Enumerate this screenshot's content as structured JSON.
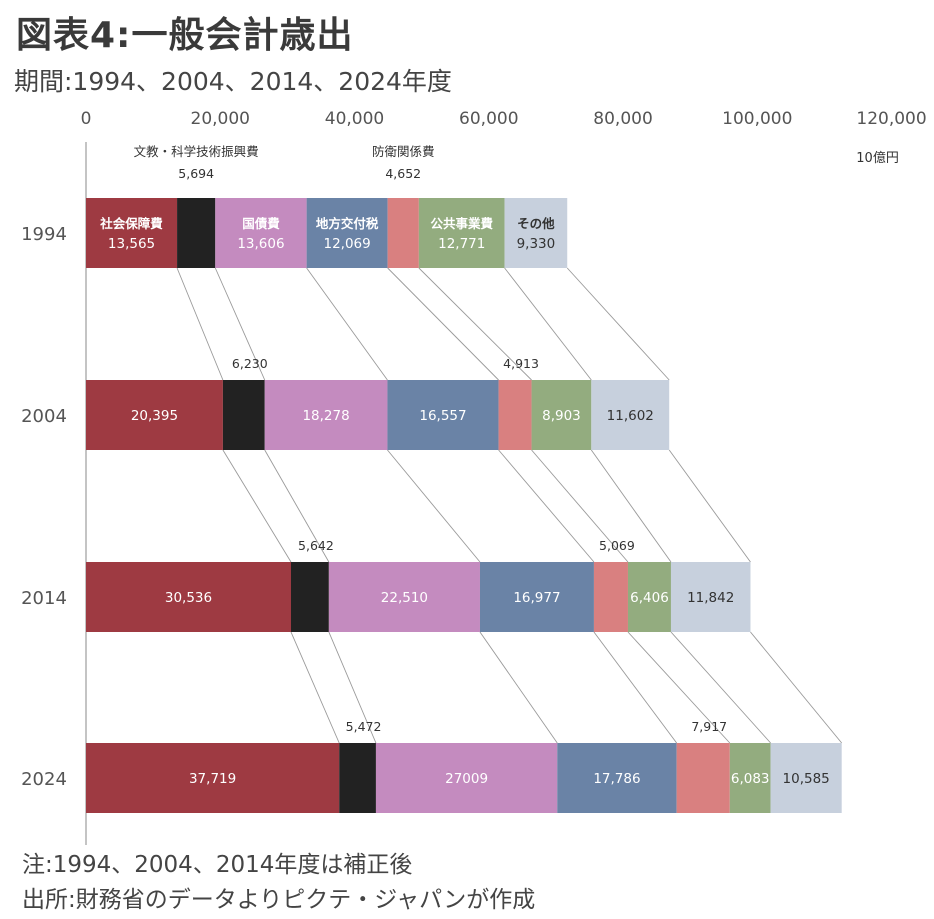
{
  "header": {
    "title": "図表4:一般会計歳出",
    "subtitle": "期間:1994、2004、2014、2024年度"
  },
  "notes": [
    "注:1994、2004、2014年度は補正後",
    "出所:財務省のデータよりピクテ・ジャパンが作成"
  ],
  "chart_data": {
    "type": "bar",
    "orientation": "horizontal",
    "stacked": true,
    "unit": "10億円",
    "xlim": [
      0,
      120000
    ],
    "xticks": [
      "0",
      "20,000",
      "40,000",
      "60,000",
      "80,000",
      "100,000",
      "120,000"
    ],
    "categories": [
      "1994",
      "2004",
      "2014",
      "2024"
    ],
    "series": [
      {
        "name": "社会保障費",
        "color": "#9e3a42",
        "text_color": "#ffffff",
        "labels": [
          "13,565",
          "20,395",
          "30,536",
          "37,719"
        ],
        "values": [
          13565,
          20395,
          30536,
          37719
        ]
      },
      {
        "name": "文教・科学技術振興費",
        "color": "#222222",
        "text_color": "#ffffff",
        "labels": [
          "5,694",
          "6,230",
          "5,642",
          "5,472"
        ],
        "values": [
          5694,
          6230,
          5642,
          5472
        ]
      },
      {
        "name": "国債費",
        "color": "#c48bbf",
        "text_color": "#ffffff",
        "labels": [
          "13,606",
          "18,278",
          "22,510",
          "27009"
        ],
        "values": [
          13606,
          18278,
          22510,
          27009
        ]
      },
      {
        "name": "地方交付税",
        "color": "#6a83a6",
        "text_color": "#ffffff",
        "labels": [
          "12,069",
          "16,557",
          "16,977",
          "17,786"
        ],
        "values": [
          12069,
          16557,
          16977,
          17786
        ]
      },
      {
        "name": "防衛関係費",
        "color": "#d98080",
        "text_color": "#ffffff",
        "labels": [
          "4,652",
          "4,913",
          "5,069",
          "7,917"
        ],
        "values": [
          4652,
          4913,
          5069,
          7917
        ]
      },
      {
        "name": "公共事業費",
        "color": "#93ac7f",
        "text_color": "#ffffff",
        "labels": [
          "12,771",
          "8,903",
          "6,406",
          "6,083"
        ],
        "values": [
          12771,
          8903,
          6406,
          6083
        ]
      },
      {
        "name": "その他",
        "color": "#c7d0dd",
        "text_color": "#333333",
        "labels": [
          "9,330",
          "11,602",
          "11,842",
          "10,585"
        ],
        "values": [
          9330,
          11602,
          11842,
          10585
        ]
      }
    ]
  }
}
